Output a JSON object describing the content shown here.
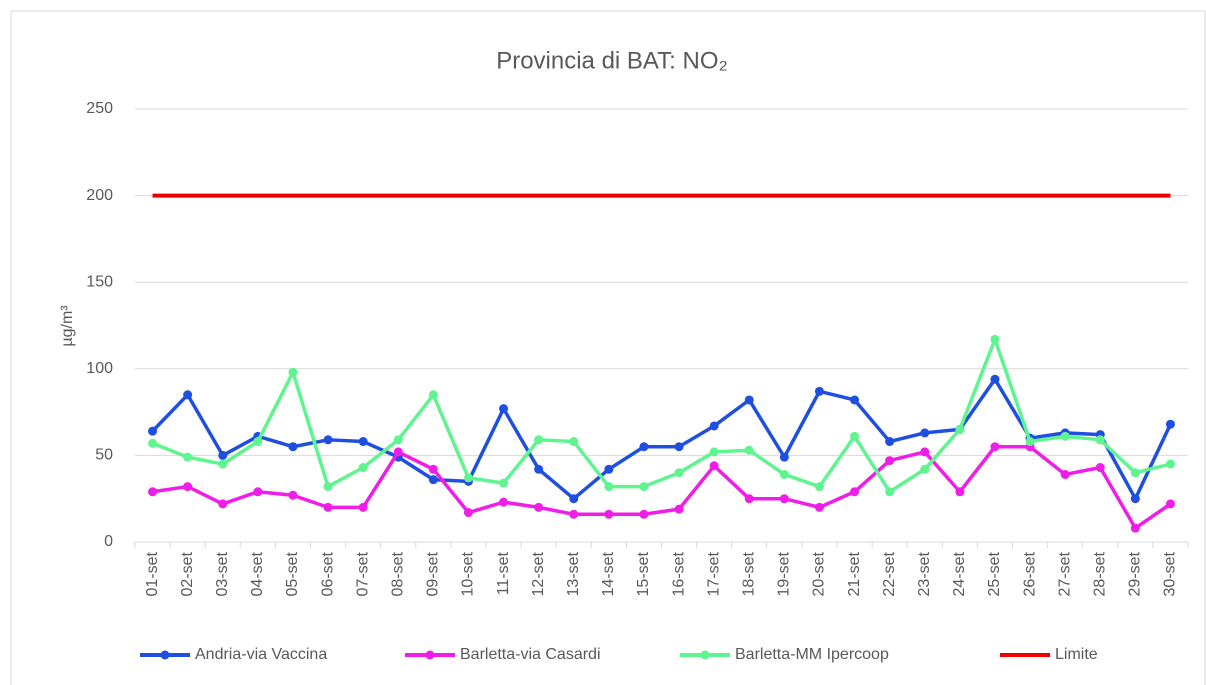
{
  "chart_data": {
    "type": "line",
    "title": "Provincia di BAT: NO₂",
    "y_label": "µg/m³",
    "categories": [
      "01-set",
      "02-set",
      "03-set",
      "04-set",
      "05-set",
      "06-set",
      "07-set",
      "08-set",
      "09-set",
      "10-set",
      "11-set",
      "12-set",
      "13-set",
      "14-set",
      "15-set",
      "16-set",
      "17-set",
      "18-set",
      "19-set",
      "20-set",
      "21-set",
      "22-set",
      "23-set",
      "24-set",
      "25-set",
      "26-set",
      "27-set",
      "28-set",
      "29-set",
      "30-set"
    ],
    "series": [
      {
        "name": "Andria-via Vaccina",
        "color": "#1f4fe0",
        "markers": true,
        "values": [
          64,
          85,
          50,
          61,
          55,
          59,
          58,
          49,
          36,
          35,
          77,
          42,
          25,
          42,
          55,
          55,
          67,
          82,
          49,
          87,
          82,
          58,
          63,
          65,
          94,
          60,
          63,
          62,
          25,
          68
        ]
      },
      {
        "name": "Barletta-via Casardi",
        "color": "#f01ce8",
        "markers": true,
        "values": [
          29,
          32,
          22,
          29,
          27,
          20,
          20,
          52,
          42,
          17,
          23,
          20,
          16,
          16,
          16,
          19,
          44,
          25,
          25,
          20,
          29,
          47,
          52,
          29,
          55,
          55,
          39,
          43,
          8,
          22
        ]
      },
      {
        "name": "Barletta-MM Ipercoop",
        "color": "#5ef58f",
        "markers": true,
        "values": [
          57,
          49,
          45,
          58,
          98,
          32,
          43,
          59,
          85,
          37,
          34,
          59,
          58,
          32,
          32,
          40,
          52,
          53,
          39,
          32,
          61,
          29,
          42,
          65,
          117,
          58,
          61,
          59,
          40,
          45
        ]
      },
      {
        "name": "Limite",
        "color": "#ee0000",
        "markers": false,
        "values": [
          200,
          200,
          200,
          200,
          200,
          200,
          200,
          200,
          200,
          200,
          200,
          200,
          200,
          200,
          200,
          200,
          200,
          200,
          200,
          200,
          200,
          200,
          200,
          200,
          200,
          200,
          200,
          200,
          200,
          200
        ]
      }
    ],
    "ylim": [
      0,
      250
    ],
    "yticks": [
      0,
      50,
      100,
      150,
      200,
      250
    ],
    "grid": true,
    "legend": "bottom"
  }
}
